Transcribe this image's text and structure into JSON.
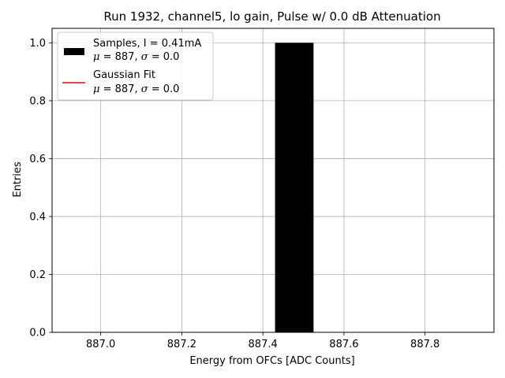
{
  "chart_data": {
    "type": "bar",
    "title": "Run 1932, channel5, lo gain, Pulse w/ 0.0 dB Attenuation",
    "xlabel": "Energy from OFCs [ADC Counts]",
    "ylabel": "Entries",
    "xlim": [
      886.88,
      887.97
    ],
    "ylim": [
      0,
      1.05
    ],
    "xticks": [
      "887.0",
      "887.2",
      "887.4",
      "887.6",
      "887.8"
    ],
    "xtick_values": [
      887.0,
      887.2,
      887.4,
      887.6,
      887.8
    ],
    "yticks": [
      "0.0",
      "0.2",
      "0.4",
      "0.6",
      "0.8",
      "1.0"
    ],
    "ytick_values": [
      0.0,
      0.2,
      0.4,
      0.6,
      0.8,
      1.0
    ],
    "grid": true,
    "legend_position": "top-left",
    "series": [
      {
        "name": "Samples, I = 0.41mA",
        "stats": {
          "mu_label": "μ",
          "mu_value": "887",
          "sigma_label": "σ",
          "sigma_value": "0.0"
        },
        "color": "#000000",
        "bins": [
          {
            "x0": 887.43,
            "x1": 887.525,
            "value": 1.0
          }
        ]
      },
      {
        "name": "Gaussian Fit",
        "stats": {
          "mu_label": "μ",
          "mu_value": "887",
          "sigma_label": "σ",
          "sigma_value": "0.0"
        },
        "color": "#ff0000"
      }
    ]
  }
}
